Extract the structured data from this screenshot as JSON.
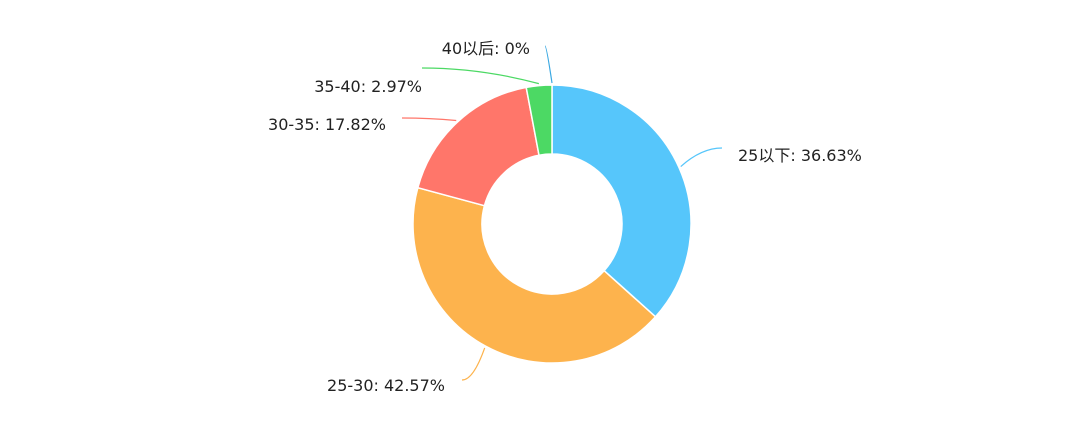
{
  "chart_data": {
    "type": "pie",
    "variant": "donut",
    "title": "",
    "legend": "none",
    "slices": [
      {
        "label": "25以下",
        "value": 36.63,
        "display": "25以下: 36.63%",
        "color": "#56c6fb"
      },
      {
        "label": "25-30",
        "value": 42.57,
        "display": "25-30: 42.57%",
        "color": "#fdb34d"
      },
      {
        "label": "30-35",
        "value": 17.82,
        "display": "30-35: 17.82%",
        "color": "#ff766a"
      },
      {
        "label": "35-40",
        "value": 2.97,
        "display": "35-40: 2.97%",
        "color": "#4cd964"
      },
      {
        "label": "40以后",
        "value": 0,
        "display": "40以后: 0%",
        "color": "#3aa8e2"
      }
    ]
  }
}
